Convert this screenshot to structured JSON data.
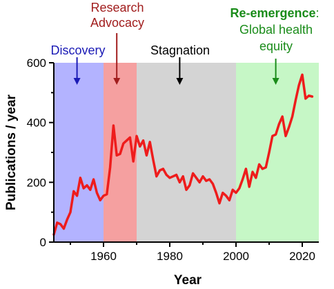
{
  "chart_data": {
    "type": "line",
    "xlabel": "Year",
    "ylabel": "Publications / year",
    "xlim": [
      1945,
      2025
    ],
    "ylim": [
      0,
      600
    ],
    "xticks": [
      1960,
      1980,
      2000,
      2020
    ],
    "yticks": [
      0,
      200,
      400,
      600
    ],
    "grid": false,
    "line_color": "#ee1c1c",
    "series": [
      {
        "x": [
          1945,
          1946,
          1947,
          1948,
          1949,
          1950,
          1951,
          1952,
          1953,
          1954,
          1955,
          1956,
          1957,
          1958,
          1959,
          1960,
          1961,
          1962,
          1963,
          1964,
          1965,
          1966,
          1967,
          1968,
          1969,
          1970,
          1971,
          1972,
          1973,
          1974,
          1975,
          1976,
          1977,
          1978,
          1979,
          1980,
          1981,
          1982,
          1983,
          1984,
          1985,
          1986,
          1987,
          1988,
          1989,
          1990,
          1991,
          1992,
          1993,
          1994,
          1995,
          1996,
          1997,
          1998,
          1999,
          2000,
          2001,
          2002,
          2003,
          2004,
          2005,
          2006,
          2007,
          2008,
          2009,
          2010,
          2011,
          2012,
          2013,
          2014,
          2015,
          2016,
          2017,
          2018,
          2019,
          2020,
          2021,
          2022,
          2023
        ],
        "y": [
          25,
          65,
          60,
          45,
          75,
          100,
          170,
          155,
          215,
          180,
          190,
          175,
          210,
          165,
          140,
          155,
          160,
          250,
          390,
          290,
          295,
          330,
          340,
          350,
          270,
          355,
          320,
          340,
          290,
          335,
          275,
          220,
          240,
          245,
          225,
          215,
          220,
          225,
          200,
          220,
          175,
          190,
          230,
          215,
          200,
          220,
          205,
          210,
          195,
          165,
          130,
          165,
          155,
          140,
          175,
          165,
          180,
          210,
          245,
          185,
          235,
          215,
          260,
          245,
          250,
          300,
          355,
          360,
          395,
          420,
          355,
          385,
          420,
          475,
          525,
          560,
          480,
          490,
          487
        ],
        "visible_x_range": [
          1945,
          2023
        ]
      }
    ],
    "eras": [
      {
        "label": "Discovery",
        "from": 1945,
        "to": 1960,
        "fill": "#b3b3ff",
        "text_color": "#1a1ab5",
        "arrow_year": 1952
      },
      {
        "label": "Research\nAdvocacy",
        "from": 1960,
        "to": 1970,
        "fill": "#f5a0a0",
        "text_color": "#a11d1d",
        "arrow_year": 1964
      },
      {
        "label": "Stagnation",
        "from": 1970,
        "to": 2000,
        "fill": "#d4d4d4",
        "text_color": "#000000",
        "arrow_year": 1983
      },
      {
        "label_bold": "Re-emergence",
        "label_rest": ":",
        "label_lines": [
          "Global health",
          "equity"
        ],
        "from": 2000,
        "to": 2025,
        "fill": "#c6f7c6",
        "text_color": "#1a8c1a",
        "arrow_year": 2012
      }
    ]
  }
}
